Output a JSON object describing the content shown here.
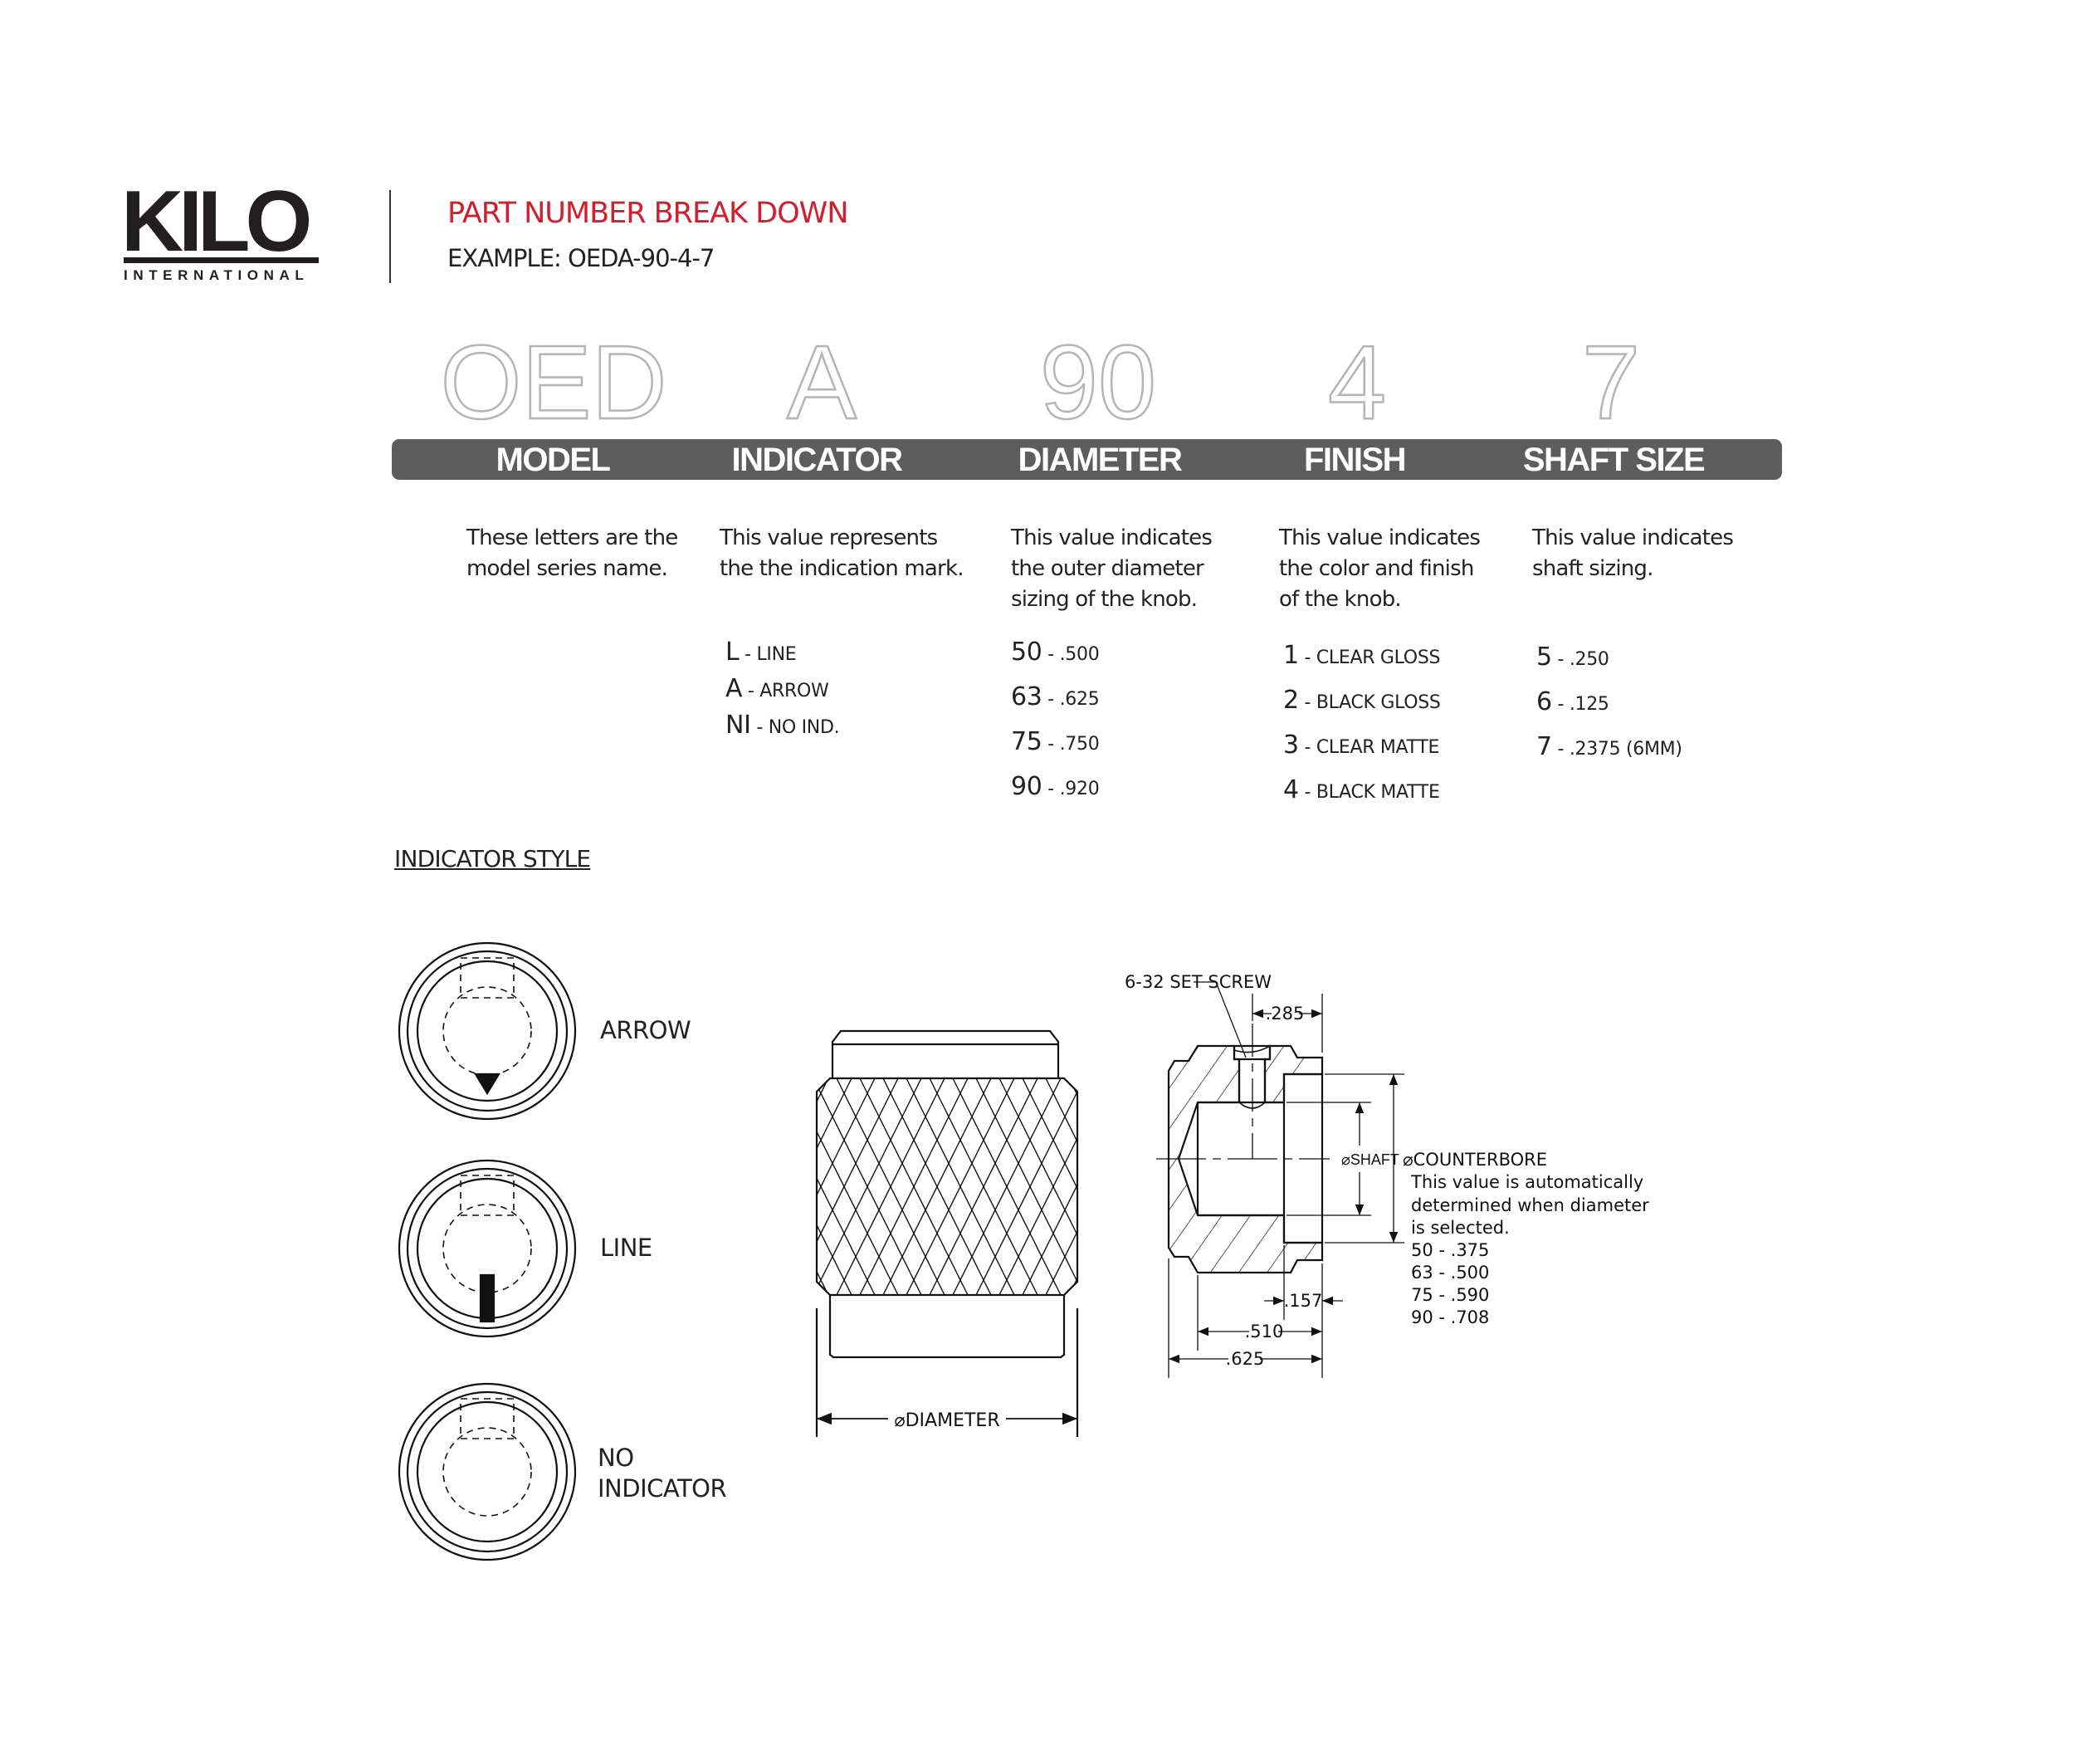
{
  "brand": {
    "logo_word": "KILO",
    "logo_sub": "INTERNATIONAL"
  },
  "header": {
    "title": "PART NUMBER BREAK DOWN",
    "example": "EXAMPLE: OEDA-90-4-7"
  },
  "colors": {
    "title": "#d0202e",
    "bar": "#5d5d5d",
    "outline_letters": "#b5b5b5"
  },
  "segments": [
    {
      "code": "OED",
      "label": "MODEL",
      "description": [
        "These letters are the",
        "model series name."
      ],
      "options": []
    },
    {
      "code": "A",
      "label": "INDICATOR",
      "description": [
        "This value represents",
        "the the indication mark."
      ],
      "options": [
        {
          "key": "L",
          "value": "LINE"
        },
        {
          "key": "A",
          "value": "ARROW"
        },
        {
          "key": "NI",
          "value": "NO IND."
        }
      ]
    },
    {
      "code": "90",
      "label": "DIAMETER",
      "description": [
        "This value indicates",
        "the outer diameter",
        "sizing of the knob."
      ],
      "options": [
        {
          "key": "50",
          "value": ".500"
        },
        {
          "key": "63",
          "value": ".625"
        },
        {
          "key": "75",
          "value": ".750"
        },
        {
          "key": "90",
          "value": ".920"
        }
      ]
    },
    {
      "code": "4",
      "label": "FINISH",
      "description": [
        "This value indicates",
        "the color and finish",
        "of the knob."
      ],
      "options": [
        {
          "key": "1",
          "value": "CLEAR GLOSS"
        },
        {
          "key": "2",
          "value": "BLACK GLOSS"
        },
        {
          "key": "3",
          "value": "CLEAR MATTE"
        },
        {
          "key": "4",
          "value": "BLACK MATTE"
        }
      ]
    },
    {
      "code": "7",
      "label": "SHAFT SIZE",
      "description": [
        "This value indicates",
        "shaft sizing."
      ],
      "options": [
        {
          "key": "5",
          "value": ".250"
        },
        {
          "key": "6",
          "value": ".125"
        },
        {
          "key": "7",
          "value": ".2375 (6MM)"
        }
      ]
    }
  ],
  "indicator_style": {
    "heading": "INDICATOR STYLE",
    "styles": [
      {
        "label": "ARROW",
        "icon": "arrow-indicator"
      },
      {
        "label": "LINE",
        "icon": "line-indicator"
      },
      {
        "label_lines": [
          "NO",
          "INDICATOR"
        ],
        "icon": "no-indicator"
      }
    ]
  },
  "side_view": {
    "diameter_label": "⌀DIAMETER"
  },
  "section_view": {
    "set_screw": "6-32 SET SCREW",
    "dim_285": ".285",
    "dim_157": ".157",
    "dim_510": ".510",
    "dim_625": ".625",
    "shaft_label": "⌀SHAFT",
    "counterbore_label": "⌀COUNTERBORE",
    "counterbore_note": [
      "This value is automatically",
      "determined when diameter",
      "is selected."
    ],
    "counterbore_values": [
      "50 - .375",
      "63 - .500",
      "75 - .590",
      "90 - .708"
    ]
  }
}
